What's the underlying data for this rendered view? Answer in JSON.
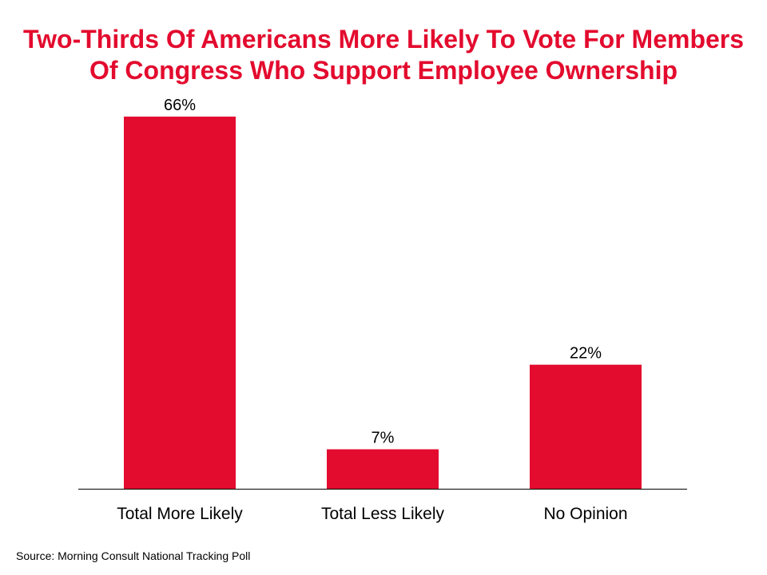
{
  "chart_data": {
    "type": "bar",
    "title_lines": [
      "Two-Thirds Of Americans More Likely To Vote For Members",
      "Of Congress Who Support Employee Ownership"
    ],
    "categories": [
      "Total More Likely",
      "Total Less Likely",
      "No Opinion"
    ],
    "values": [
      66,
      7,
      22
    ],
    "value_labels": [
      "66%",
      "7%",
      "22%"
    ],
    "unit": "%",
    "xlabel": "",
    "ylabel": "",
    "ylim": [
      0,
      66
    ],
    "grid": false,
    "legend": "none",
    "bar_color": "#e30b2e",
    "title_color": "#e30b2e"
  },
  "source": "Source: Morning Consult National Tracking Poll"
}
